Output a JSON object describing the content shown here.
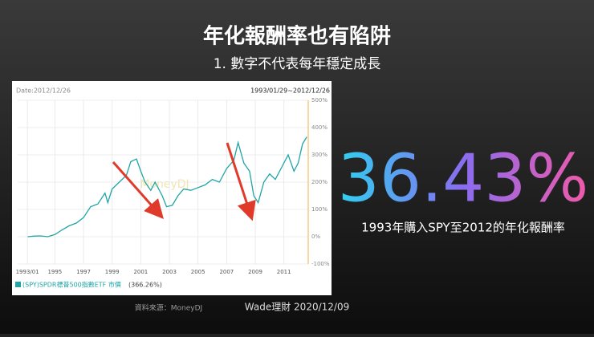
{
  "slide": {
    "title": "年化報酬率也有陷阱",
    "subtitle": "1. 數字不代表每年穩定成長",
    "big_number": "36.43%",
    "caption": "1993年購入SPY至2012的年化報酬率",
    "source": "資料來源：MoneyDJ",
    "author": "Wade理財 2020/12/09"
  },
  "chart_data": {
    "type": "line",
    "date_label": "Date:2012/12/26",
    "range_label": "1993/01/29~2012/12/26",
    "watermark": "MoneyDJ",
    "legend_total": "(366.26%)",
    "x": [
      1993.1,
      1993.5,
      1994,
      1994.5,
      1995,
      1995.5,
      1996,
      1996.5,
      1997,
      1997.5,
      1998,
      1998.5,
      1998.7,
      1999,
      1999.5,
      2000,
      2000.3,
      2000.7,
      2001,
      2001.3,
      2001.7,
      2002,
      2002.5,
      2002.8,
      2003.2,
      2003.6,
      2004,
      2004.5,
      2005,
      2005.5,
      2006,
      2006.5,
      2007,
      2007.5,
      2007.8,
      2008.2,
      2008.6,
      2008.9,
      2009.2,
      2009.6,
      2010,
      2010.4,
      2010.8,
      2011.3,
      2011.7,
      2012,
      2012.3,
      2012.6
    ],
    "series": [
      {
        "name": "(SPY)SPDR標普500指數ETF 市價",
        "color": "#1fa5a5",
        "values": [
          0,
          2,
          3,
          0,
          8,
          25,
          40,
          50,
          70,
          110,
          120,
          160,
          125,
          175,
          200,
          225,
          275,
          285,
          240,
          200,
          170,
          200,
          150,
          110,
          115,
          150,
          175,
          170,
          180,
          190,
          210,
          200,
          250,
          280,
          345,
          270,
          240,
          150,
          125,
          200,
          230,
          210,
          250,
          300,
          240,
          270,
          340,
          366
        ]
      }
    ],
    "xlim": [
      1992.4,
      2012.7
    ],
    "xticks": [
      {
        "value": 1993.08,
        "label": "1993/01"
      },
      1995,
      1997,
      1999,
      2001,
      2003,
      2005,
      2007,
      2009,
      2011
    ],
    "ylim": [
      -100,
      500
    ],
    "yticks": [
      {
        "value": -100,
        "label": "-100%"
      },
      {
        "value": 0,
        "label": "0%"
      },
      {
        "value": 100,
        "label": "100%"
      },
      {
        "value": 200,
        "label": "200%"
      },
      {
        "value": 300,
        "label": "300%"
      },
      {
        "value": 400,
        "label": "400%"
      },
      {
        "value": 500,
        "label": "500%"
      }
    ],
    "grid": true
  }
}
